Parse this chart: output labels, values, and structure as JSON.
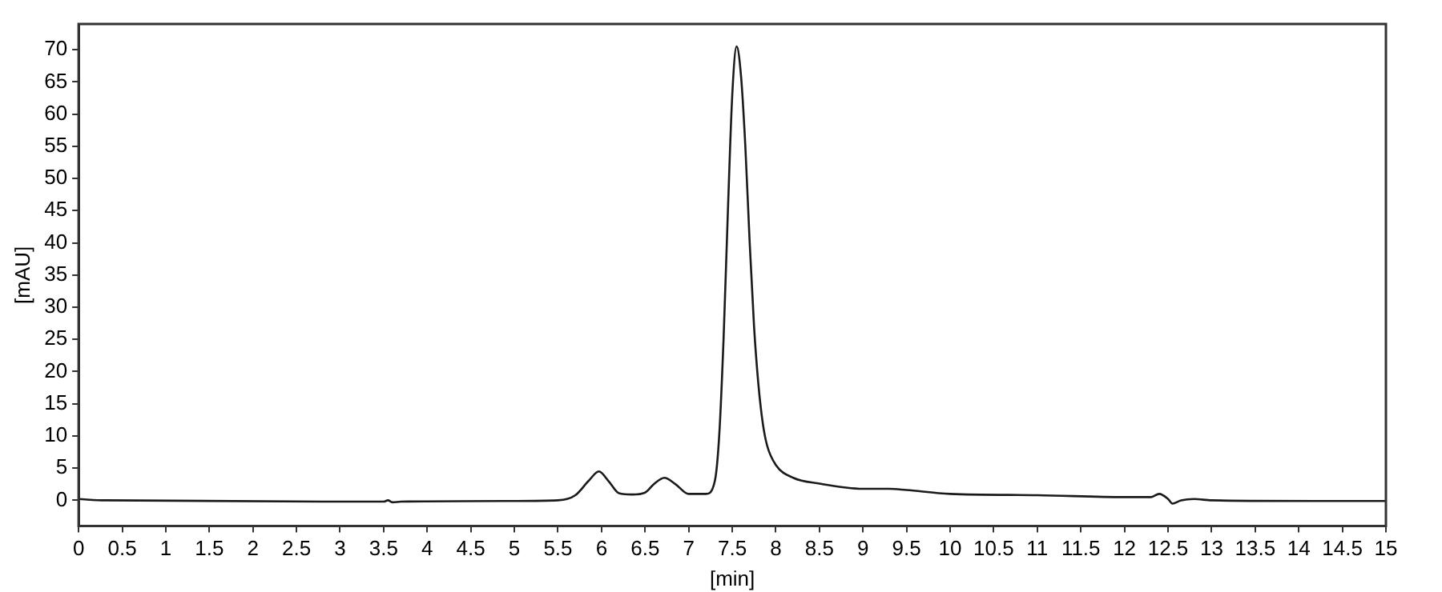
{
  "chart_data": {
    "type": "line",
    "xlabel": "[min]",
    "ylabel": "[mAU]",
    "x": [
      0,
      0.3,
      3.5,
      3.55,
      3.6,
      3.7,
      5.0,
      5.5,
      5.7,
      5.85,
      5.97,
      6.08,
      6.2,
      6.35,
      6.5,
      6.6,
      6.72,
      6.85,
      7.0,
      7.2,
      7.3,
      7.35,
      7.4,
      7.45,
      7.5,
      7.55,
      7.6,
      7.65,
      7.7,
      7.75,
      7.8,
      7.85,
      7.9,
      8.0,
      8.2,
      8.5,
      9.0,
      9.3,
      9.5,
      10.0,
      11.0,
      12.0,
      12.3,
      12.4,
      12.5,
      12.55,
      12.65,
      12.8,
      13.0,
      14.2,
      15.0
    ],
    "series": [
      {
        "color": "#1a1a1a",
        "values": [
          0.2,
          0,
          -0.2,
          0,
          -0.3,
          -0.2,
          -0.1,
          0,
          0.8,
          3,
          4.5,
          3,
          1.1,
          0.9,
          1.2,
          2.5,
          3.5,
          2.5,
          1.0,
          1.0,
          3,
          10,
          25,
          45,
          63,
          70.5,
          66,
          55,
          40,
          27,
          18,
          12,
          8.5,
          5.5,
          3.5,
          2.6,
          1.8,
          1.8,
          1.6,
          1.0,
          0.8,
          0.5,
          0.5,
          1.0,
          0.2,
          -0.5,
          0,
          0.2,
          0,
          -0.1,
          -0.1
        ]
      }
    ],
    "xlim": [
      0,
      15
    ],
    "xticks": [
      0,
      0.5,
      1,
      1.5,
      2,
      2.5,
      3,
      3.5,
      4,
      4.5,
      5,
      5.5,
      6,
      6.5,
      7,
      7.5,
      8,
      8.5,
      9,
      9.5,
      10,
      10.5,
      11,
      11.5,
      12,
      12.5,
      13,
      13.5,
      14,
      14.5,
      15
    ],
    "ylim": [
      -4,
      74
    ],
    "yticks": [
      0,
      5,
      10,
      15,
      20,
      25,
      30,
      35,
      40,
      45,
      50,
      55,
      60,
      65,
      70
    ],
    "grid": false,
    "legend": false,
    "marker": "none",
    "line_style": "solid"
  }
}
